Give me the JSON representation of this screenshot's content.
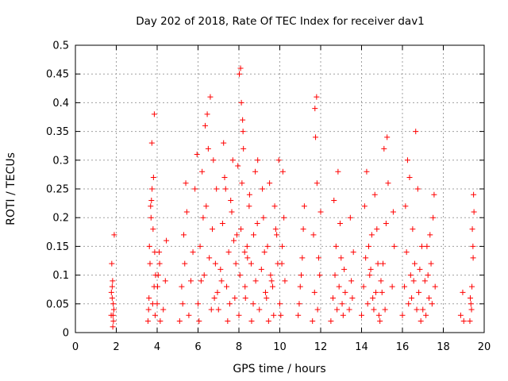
{
  "chart_data": {
    "type": "scatter",
    "title": "Day 202 of 2018, Rate Of TEC Index for receiver dav1",
    "xlabel": "GPS time / hours",
    "ylabel": "ROTI / TECUs",
    "xlim": [
      0,
      20
    ],
    "ylim": [
      0,
      0.5
    ],
    "xticks": [
      "0",
      "2",
      "4",
      "6",
      "8",
      "10",
      "12",
      "14",
      "16",
      "18",
      "20"
    ],
    "yticks": [
      "0",
      "0.05",
      "0.1",
      "0.15",
      "0.2",
      "0.25",
      "0.3",
      "0.35",
      "0.4",
      "0.45",
      "0.5"
    ],
    "grid": true,
    "marker": "plus",
    "color": "#ff0000",
    "series": [
      {
        "x": [
          1.75,
          1.8,
          1.82,
          1.85,
          1.78,
          1.9,
          1.83,
          1.88,
          1.76,
          1.86,
          1.8,
          1.84,
          3.55,
          3.6,
          3.65,
          3.7,
          3.75,
          3.8,
          3.85,
          3.9,
          3.62,
          3.72,
          3.82,
          3.92,
          3.58,
          3.68,
          3.78,
          3.88,
          3.74,
          3.86,
          4.0,
          4.05,
          4.1,
          4.15,
          4.02,
          4.12,
          4.3,
          4.4,
          4.45,
          5.1,
          5.2,
          5.3,
          5.4,
          5.25,
          5.35,
          5.45,
          5.55,
          5.65,
          5.75,
          5.85,
          5.95,
          6.0,
          6.1,
          6.2,
          6.3,
          6.4,
          6.5,
          6.6,
          6.7,
          6.8,
          6.9,
          6.45,
          6.55,
          6.65,
          6.35,
          6.25,
          6.15,
          6.75,
          6.85,
          6.05,
          6.95,
          7.0,
          7.1,
          7.2,
          7.3,
          7.4,
          7.5,
          7.6,
          7.7,
          7.8,
          7.9,
          7.25,
          7.45,
          7.65,
          7.85,
          7.15,
          7.35,
          7.55,
          7.75,
          7.95,
          8.0,
          8.05,
          8.1,
          8.15,
          8.2,
          8.3,
          8.4,
          8.5,
          8.6,
          8.7,
          8.8,
          8.9,
          8.02,
          8.12,
          8.22,
          8.32,
          8.42,
          8.52,
          8.62,
          8.72,
          8.82,
          8.92,
          8.08,
          8.18,
          8.28,
          9.0,
          9.1,
          9.2,
          9.3,
          9.4,
          9.5,
          9.6,
          9.7,
          9.8,
          9.9,
          9.15,
          9.35,
          9.55,
          9.75,
          9.95,
          9.25,
          9.45,
          9.65,
          9.85,
          10.0,
          10.1,
          10.2,
          10.15,
          10.05,
          10.25,
          10.12,
          10.9,
          11.0,
          11.1,
          11.2,
          10.95,
          11.05,
          11.15,
          11.6,
          11.7,
          11.8,
          11.9,
          12.0,
          11.75,
          11.85,
          11.65,
          11.95,
          11.72,
          11.82,
          12.5,
          12.6,
          12.7,
          12.8,
          12.9,
          13.0,
          13.1,
          13.2,
          12.65,
          12.85,
          13.05,
          12.75,
          12.95,
          13.15,
          13.4,
          13.5,
          13.6,
          13.45,
          13.55,
          14.0,
          14.1,
          14.2,
          14.3,
          14.4,
          14.5,
          14.6,
          14.7,
          14.8,
          14.9,
          14.15,
          14.35,
          14.55,
          14.75,
          14.95,
          14.25,
          14.45,
          14.65,
          14.85,
          15.0,
          15.1,
          15.2,
          15.3,
          15.05,
          15.15,
          15.25,
          15.5,
          15.6,
          15.55,
          16.0,
          16.1,
          16.2,
          16.3,
          16.4,
          16.5,
          16.6,
          16.7,
          16.8,
          16.9,
          16.15,
          16.35,
          16.55,
          16.75,
          16.95,
          16.25,
          16.45,
          16.65,
          16.85,
          17.0,
          17.1,
          17.2,
          17.3,
          17.4,
          17.5,
          17.6,
          17.15,
          17.35,
          17.55,
          17.25,
          17.45,
          18.85,
          18.95,
          19.0,
          19.3,
          19.35,
          19.4,
          19.45,
          19.5,
          19.38,
          19.42,
          19.48,
          19.32,
          19.46
        ],
        "y": [
          0.03,
          0.06,
          0.09,
          0.05,
          0.12,
          0.17,
          0.01,
          0.04,
          0.07,
          0.02,
          0.08,
          0.03,
          0.02,
          0.06,
          0.12,
          0.2,
          0.25,
          0.18,
          0.08,
          0.03,
          0.15,
          0.23,
          0.27,
          0.1,
          0.04,
          0.22,
          0.05,
          0.14,
          0.33,
          0.38,
          0.05,
          0.1,
          0.14,
          0.02,
          0.08,
          0.12,
          0.04,
          0.09,
          0.16,
          0.02,
          0.08,
          0.17,
          0.26,
          0.05,
          0.12,
          0.21,
          0.03,
          0.09,
          0.14,
          0.25,
          0.31,
          0.05,
          0.15,
          0.28,
          0.1,
          0.22,
          0.32,
          0.41,
          0.18,
          0.06,
          0.25,
          0.38,
          0.13,
          0.04,
          0.36,
          0.2,
          0.09,
          0.3,
          0.12,
          0.02,
          0.07,
          0.04,
          0.11,
          0.19,
          0.27,
          0.08,
          0.14,
          0.23,
          0.3,
          0.06,
          0.17,
          0.33,
          0.02,
          0.21,
          0.12,
          0.09,
          0.25,
          0.05,
          0.16,
          0.29,
          0.03,
          0.1,
          0.18,
          0.26,
          0.35,
          0.08,
          0.15,
          0.22,
          0.12,
          0.05,
          0.28,
          0.19,
          0.45,
          0.4,
          0.32,
          0.06,
          0.13,
          0.24,
          0.02,
          0.17,
          0.09,
          0.3,
          0.46,
          0.37,
          0.14,
          0.04,
          0.11,
          0.2,
          0.07,
          0.15,
          0.26,
          0.09,
          0.03,
          0.18,
          0.12,
          0.25,
          0.06,
          0.1,
          0.22,
          0.3,
          0.14,
          0.02,
          0.08,
          0.17,
          0.05,
          0.12,
          0.2,
          0.28,
          0.03,
          0.09,
          0.15,
          0.03,
          0.08,
          0.13,
          0.22,
          0.05,
          0.1,
          0.18,
          0.02,
          0.07,
          0.41,
          0.13,
          0.21,
          0.34,
          0.04,
          0.17,
          0.1,
          0.39,
          0.26,
          0.02,
          0.06,
          0.1,
          0.04,
          0.08,
          0.13,
          0.03,
          0.07,
          0.23,
          0.28,
          0.05,
          0.15,
          0.19,
          0.11,
          0.04,
          0.09,
          0.14,
          0.2,
          0.06,
          0.03,
          0.08,
          0.13,
          0.05,
          0.1,
          0.17,
          0.04,
          0.07,
          0.12,
          0.02,
          0.22,
          0.15,
          0.06,
          0.18,
          0.09,
          0.28,
          0.11,
          0.24,
          0.03,
          0.07,
          0.32,
          0.19,
          0.26,
          0.12,
          0.04,
          0.34,
          0.08,
          0.15,
          0.21,
          0.03,
          0.08,
          0.14,
          0.05,
          0.1,
          0.18,
          0.12,
          0.04,
          0.07,
          0.02,
          0.22,
          0.27,
          0.09,
          0.25,
          0.15,
          0.3,
          0.06,
          0.35,
          0.11,
          0.04,
          0.09,
          0.15,
          0.06,
          0.12,
          0.2,
          0.08,
          0.03,
          0.17,
          0.24,
          0.1,
          0.05,
          0.03,
          0.07,
          0.02,
          0.02,
          0.05,
          0.08,
          0.15,
          0.21,
          0.04,
          0.18,
          0.24,
          0.06,
          0.13
        ]
      }
    ]
  }
}
